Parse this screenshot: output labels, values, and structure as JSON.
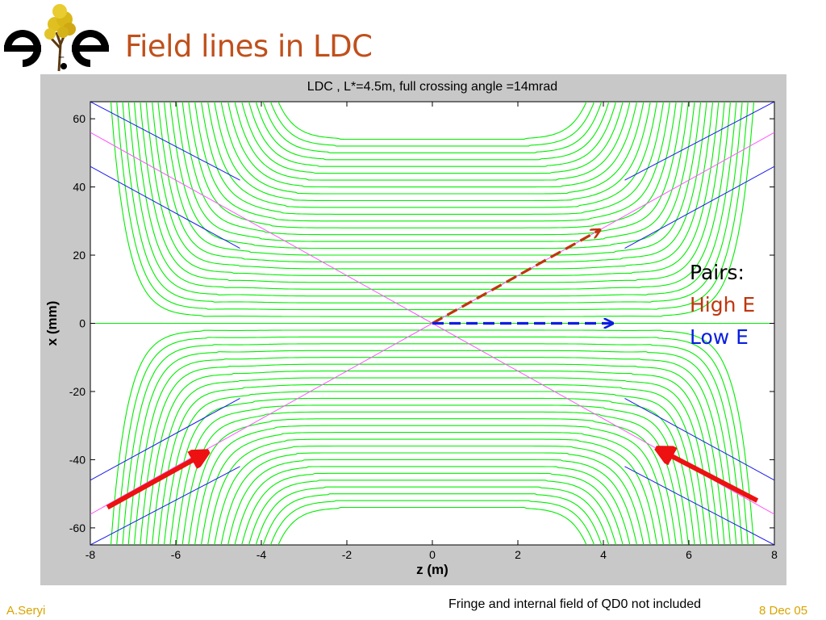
{
  "slide": {
    "title": "Field lines in LDC",
    "author": "A.Seryi",
    "date": "8 Dec 05",
    "note": "Fringe and internal field of QD0 not included"
  },
  "legend": {
    "heading": "Pairs:",
    "high": "High E",
    "low": "Low E"
  },
  "colors": {
    "title": "#c0501c",
    "field_lines": "#00ee00",
    "beam_lines": "#ff55ff",
    "aperture_lines": "#1a1aee",
    "high_e": "#c0350e",
    "low_e": "#0a1ee0",
    "incoming_arrows": "#ee1111",
    "footer": "#d9a300"
  },
  "chart_data": {
    "type": "line",
    "title": "LDC , L*=4.5m,  full crossing angle =14mrad",
    "xlabel": "z (m)",
    "ylabel": "x (mm)",
    "xlim": [
      -8,
      8
    ],
    "ylim": [
      -65,
      65
    ],
    "xticks": [
      "-8",
      "-6",
      "-4",
      "-2",
      "0",
      "2",
      "4",
      "6",
      "8"
    ],
    "yticks": [
      "-60",
      "-40",
      "-20",
      "0",
      "20",
      "40",
      "60"
    ],
    "grid": false,
    "field_lines_center_x": [
      -2,
      -4,
      -6,
      -8,
      -10,
      -12,
      -14,
      -16,
      -18,
      -20,
      -22,
      -24,
      -26,
      -28,
      -30,
      -32,
      -34,
      -36,
      -38,
      -40,
      -42,
      -44,
      -46,
      -48,
      -50,
      -52,
      -54,
      0,
      2,
      4,
      6,
      8,
      10,
      12,
      14,
      16,
      18,
      20,
      22,
      24,
      26,
      28,
      30,
      32,
      34,
      36,
      38,
      40,
      42,
      44,
      46,
      48,
      50,
      52,
      54
    ],
    "beam_lines": [
      {
        "z": [
          -8,
          8
        ],
        "x": [
          56,
          -56
        ]
      },
      {
        "z": [
          -8,
          8
        ],
        "x": [
          -56,
          56
        ]
      }
    ],
    "aperture_lines": [
      {
        "z": [
          -8,
          -4.5
        ],
        "x": [
          65,
          42
        ]
      },
      {
        "z": [
          -8,
          -4.5
        ],
        "x": [
          46,
          22
        ]
      },
      {
        "z": [
          4.5,
          8
        ],
        "x": [
          42,
          65
        ]
      },
      {
        "z": [
          4.5,
          8
        ],
        "x": [
          22,
          46
        ]
      },
      {
        "z": [
          -8,
          -4.5
        ],
        "x": [
          -46,
          -22
        ]
      },
      {
        "z": [
          -8,
          -4.5
        ],
        "x": [
          -65,
          -42
        ]
      },
      {
        "z": [
          4.5,
          8
        ],
        "x": [
          -22,
          -46
        ]
      },
      {
        "z": [
          4.5,
          8
        ],
        "x": [
          -42,
          -65
        ]
      }
    ],
    "arrows": [
      {
        "name": "high-e",
        "z": [
          0,
          3.9
        ],
        "x": [
          0,
          27.3
        ],
        "style": "dashed"
      },
      {
        "name": "low-e",
        "z": [
          0,
          4.2
        ],
        "x": [
          0,
          0
        ],
        "style": "dashed"
      },
      {
        "name": "incoming-left",
        "z": [
          -7.6,
          -5.3
        ],
        "x": [
          -54,
          -38
        ],
        "style": "solid"
      },
      {
        "name": "incoming-right",
        "z": [
          7.6,
          5.3
        ],
        "x": [
          -52,
          -37
        ],
        "style": "solid"
      }
    ]
  }
}
